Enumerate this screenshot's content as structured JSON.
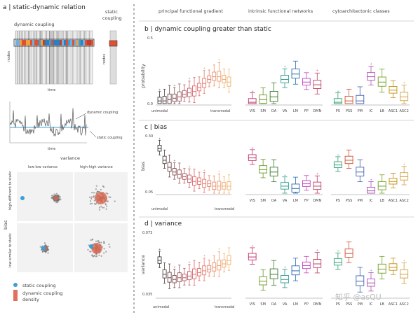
{
  "panel_a": {
    "title": "a | static-dynamic relation",
    "dynamic_coupling_label": "dynamic coupling",
    "static_coupling_label": "static\ncoupling",
    "nodes_label": "nodes",
    "time_label": "time",
    "trace_dynamic_label": "dynamic coupling",
    "trace_static_label": "static coupling",
    "trace_time_label": "time",
    "variance_label": "variance",
    "bias_label": "bias",
    "low_low_variance": "low-low variance",
    "high_high_variance": "high-high variance",
    "high_different": "high-different to static",
    "low_similar": "low-similar to static",
    "legend": {
      "static": "static coupling",
      "dynamic": "dynamic coupling",
      "density": "density"
    }
  },
  "column_headers": {
    "gradient": "principal functional gradient",
    "networks": "intrinsic functional networks",
    "cyto": "cytoarchitectonic classes"
  },
  "panel_b": {
    "title": "b | dynamic coupling greater than static",
    "ylabel": "probability",
    "yticks": [
      "0.5",
      "0.0"
    ]
  },
  "panel_c": {
    "title": "c | bias",
    "ylabel": "bias",
    "yticks": [
      "0.30",
      "0.05"
    ]
  },
  "panel_d": {
    "title": "d | variance",
    "ylabel": "variance",
    "yticks": [
      "0.073",
      "0.035"
    ]
  },
  "gradient_axis": {
    "left": "unimodal",
    "right": "transmodal"
  },
  "network_labels": [
    "VIS",
    "SM",
    "DA",
    "VA",
    "LM",
    "FP",
    "DMN"
  ],
  "cyto_labels": [
    "PS",
    "PSS",
    "PM",
    "IC",
    "LB",
    "ASC1",
    "ASC2"
  ],
  "watermark": "知乎 @asQU",
  "colors": {
    "static": "#3aa0d8",
    "gradient_start": "#3a3a3a",
    "gradient_end": "#f0b070",
    "networks": [
      "#c0306a",
      "#6a9a2a",
      "#3a7a2a",
      "#2a9a8a",
      "#2a6ab0",
      "#c040c0",
      "#c04060"
    ],
    "cyto": [
      "#30a070",
      "#d05030",
      "#4060b0",
      "#b050b0",
      "#70a020",
      "#c09010",
      "#d0a040"
    ]
  },
  "chart_data": [
    {
      "type": "box",
      "panel": "b",
      "ylim": [
        0,
        0.5
      ],
      "groups": {
        "gradient": {
          "medians": [
            0.02,
            0.02,
            0.03,
            0.04,
            0.05,
            0.07,
            0.08,
            0.09,
            0.12,
            0.15,
            0.18,
            0.2,
            0.2,
            0.18,
            0.16
          ]
        },
        "networks": {
          "categories": [
            "VIS",
            "SM",
            "DA",
            "VA",
            "LM",
            "FP",
            "DMN"
          ],
          "medians": [
            0.01,
            0.03,
            0.05,
            0.18,
            0.22,
            0.16,
            0.14
          ]
        },
        "cyto": {
          "categories": [
            "PS",
            "PSS",
            "PM",
            "IC",
            "LB",
            "ASC1",
            "ASC2"
          ],
          "medians": [
            0.01,
            0.02,
            0.02,
            0.2,
            0.16,
            0.1,
            0.05
          ]
        }
      }
    },
    {
      "type": "box",
      "panel": "c",
      "ylim": [
        0.05,
        0.3
      ],
      "groups": {
        "gradient": {
          "medians": [
            0.24,
            0.19,
            0.16,
            0.14,
            0.13,
            0.12,
            0.11,
            0.1,
            0.1,
            0.09,
            0.09,
            0.08,
            0.08,
            0.08,
            0.08
          ]
        },
        "networks": {
          "categories": [
            "VIS",
            "SM",
            "DA",
            "VA",
            "LM",
            "FP",
            "DMN"
          ],
          "medians": [
            0.2,
            0.15,
            0.14,
            0.08,
            0.07,
            0.09,
            0.08
          ]
        },
        "cyto": {
          "categories": [
            "PS",
            "PSS",
            "PM",
            "IC",
            "LB",
            "ASC1",
            "ASC2"
          ],
          "medians": [
            0.17,
            0.19,
            0.14,
            0.06,
            0.08,
            0.1,
            0.12
          ]
        }
      }
    },
    {
      "type": "box",
      "panel": "d",
      "ylim": [
        0.035,
        0.073
      ],
      "groups": {
        "gradient": {
          "medians": [
            0.056,
            0.048,
            0.046,
            0.045,
            0.046,
            0.046,
            0.047,
            0.048,
            0.049,
            0.05,
            0.051,
            0.052,
            0.053,
            0.054,
            0.056
          ]
        },
        "networks": {
          "categories": [
            "VIS",
            "SM",
            "DA",
            "VA",
            "LM",
            "FP",
            "DMN"
          ],
          "medians": [
            0.058,
            0.044,
            0.048,
            0.045,
            0.05,
            0.053,
            0.054
          ]
        },
        "cyto": {
          "categories": [
            "PS",
            "PSS",
            "PM",
            "IC",
            "LB",
            "ASC1",
            "ASC2"
          ],
          "medians": [
            0.055,
            0.06,
            0.044,
            0.043,
            0.051,
            0.052,
            0.048
          ]
        }
      }
    }
  ]
}
